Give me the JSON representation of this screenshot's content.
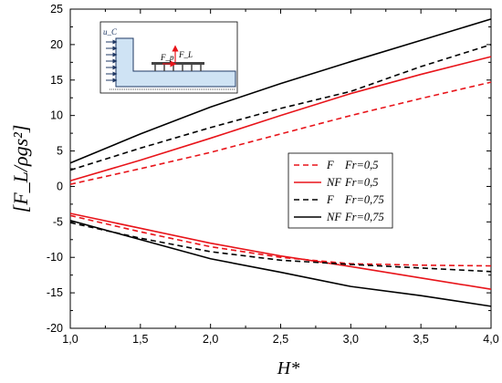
{
  "chart_data": {
    "type": "line",
    "xlabel": "H*",
    "ylabel": "[F_L/ρgs²]",
    "xlim": [
      1.0,
      4.0
    ],
    "ylim": [
      -20,
      25
    ],
    "xticks": [
      1.0,
      1.5,
      2.0,
      2.5,
      3.0,
      3.5,
      4.0
    ],
    "xtick_labels": [
      "1,0",
      "1,5",
      "2,0",
      "2,5",
      "3,0",
      "3,5",
      "4,0"
    ],
    "yticks": [
      -20,
      -15,
      -10,
      -5,
      0,
      5,
      10,
      15,
      20,
      25
    ],
    "ytick_labels": [
      "-20",
      "-15",
      "-10",
      "-5",
      "0",
      "5",
      "10",
      "15",
      "20",
      "25"
    ],
    "grid": false,
    "legend_position": "center-right",
    "series": [
      {
        "name": "F Fr=0,5",
        "legend_prefix": "F",
        "legend_suffix": "Fr=0,5",
        "color": "#e8141a",
        "dash": "dashed",
        "x": [
          1.0,
          1.5,
          2.0,
          2.5,
          3.0,
          3.5,
          4.0
        ],
        "y": [
          0.3,
          2.5,
          4.8,
          7.4,
          10.0,
          12.4,
          14.7
        ]
      },
      {
        "name": "NF Fr=0,5",
        "legend_prefix": "NF",
        "legend_suffix": "Fr=0,5",
        "color": "#e8141a",
        "dash": "solid",
        "x": [
          1.0,
          1.5,
          2.0,
          2.5,
          3.0,
          3.5,
          4.0
        ],
        "y": [
          0.8,
          3.7,
          6.8,
          10.0,
          13.1,
          15.8,
          18.3
        ]
      },
      {
        "name": "F Fr=0,75",
        "legend_prefix": "F",
        "legend_suffix": "Fr=0,75",
        "color": "#000000",
        "dash": "dashed",
        "x": [
          1.0,
          1.5,
          2.0,
          2.5,
          3.0,
          3.5,
          4.0
        ],
        "y": [
          2.3,
          5.4,
          8.3,
          11.0,
          13.4,
          16.9,
          20.0
        ]
      },
      {
        "name": "NF Fr=0,75",
        "legend_prefix": "NF",
        "legend_suffix": "Fr=0,75",
        "color": "#000000",
        "dash": "solid",
        "x": [
          1.0,
          1.5,
          2.0,
          2.5,
          3.0,
          3.5,
          4.0
        ],
        "y": [
          3.3,
          7.4,
          11.2,
          14.5,
          17.6,
          20.6,
          23.6
        ]
      },
      {
        "name": "F Fr=0,5 (lower)",
        "color": "#e8141a",
        "dash": "dashed",
        "x": [
          1.0,
          1.5,
          2.0,
          2.5,
          3.0,
          3.5,
          4.0
        ],
        "y": [
          -4.1,
          -6.4,
          -8.5,
          -10.0,
          -10.9,
          -11.1,
          -11.2
        ]
      },
      {
        "name": "NF Fr=0,5 (lower)",
        "color": "#e8141a",
        "dash": "solid",
        "x": [
          1.0,
          1.5,
          2.0,
          2.5,
          3.0,
          3.5,
          4.0
        ],
        "y": [
          -3.8,
          -5.9,
          -8.0,
          -9.8,
          -11.3,
          -12.9,
          -14.5
        ]
      },
      {
        "name": "F Fr=0,75 (lower)",
        "color": "#000000",
        "dash": "dashed",
        "x": [
          1.0,
          1.5,
          2.0,
          2.5,
          3.0,
          3.5,
          4.0
        ],
        "y": [
          -5.1,
          -7.3,
          -9.2,
          -10.4,
          -11.0,
          -11.5,
          -12.0
        ]
      },
      {
        "name": "NF Fr=0,75 (lower)",
        "color": "#000000",
        "dash": "solid",
        "x": [
          1.0,
          1.5,
          2.0,
          2.5,
          3.0,
          3.5,
          4.0
        ],
        "y": [
          -4.8,
          -7.5,
          -10.2,
          -12.1,
          -14.1,
          -15.4,
          -16.9
        ]
      }
    ],
    "inset": {
      "labels": [
        "u_C",
        "F_p",
        "F_L"
      ]
    }
  }
}
